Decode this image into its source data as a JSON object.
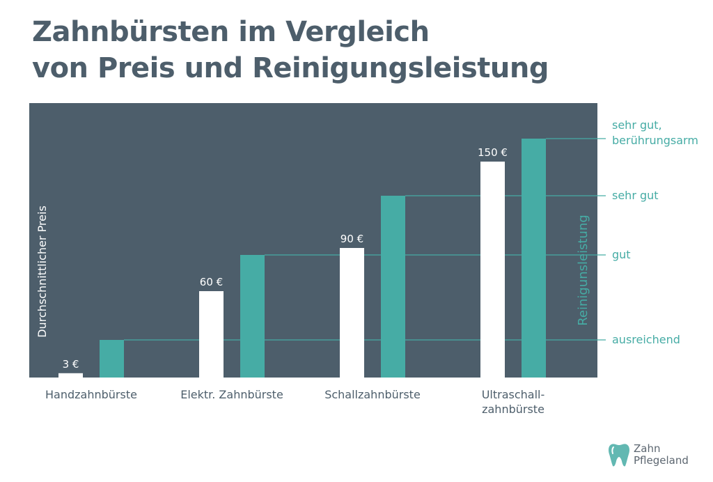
{
  "title_line1": "Zahnbürsten im Vergleich",
  "title_line2": "von Preis und Reinigungsleistung",
  "chart_data": {
    "type": "bar",
    "categories": [
      [
        "Handzahnbürste"
      ],
      [
        "Elektr. Zahnbürste"
      ],
      [
        "Schallzahnbürste"
      ],
      [
        "Ultraschall-",
        "zahnbürste"
      ]
    ],
    "price": {
      "axis_label": "Durchschnittlicher Preis",
      "values": [
        3,
        60,
        90,
        150
      ],
      "value_labels": [
        "3 €",
        "60 €",
        "90 €",
        "150 €"
      ],
      "ylim": [
        0,
        170
      ],
      "color": "#ffffff"
    },
    "cleaning": {
      "axis_label": "Reinigunsleistung",
      "levels": [
        [
          "ausreichend"
        ],
        [
          "gut"
        ],
        [
          "sehr gut"
        ],
        [
          "sehr gut,",
          "berührungsarm"
        ]
      ],
      "values": [
        1,
        2,
        3,
        4
      ],
      "color": "#46aca5"
    },
    "background_color": "#4d5e6b",
    "grid": false
  },
  "logo": {
    "line1": "Zahn",
    "line2": "Pflegeland"
  }
}
